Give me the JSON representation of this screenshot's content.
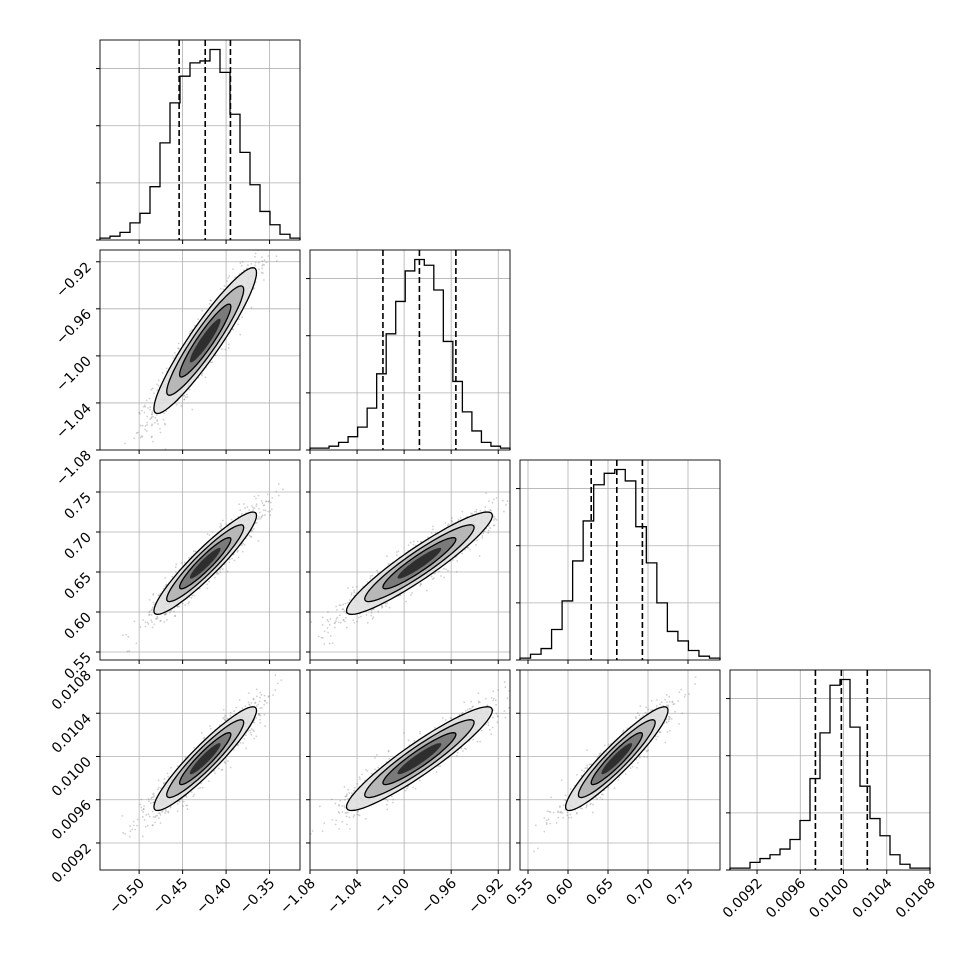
{
  "chart_data": {
    "type": "corner",
    "params": [
      {
        "ticks": [
          -0.5,
          -0.45,
          -0.4,
          -0.35
        ],
        "tick_labels": [
          "−0.50",
          "−0.45",
          "−0.40",
          "−0.35"
        ],
        "range": [
          -0.545,
          -0.315
        ],
        "hist_counts": [
          0.01,
          0.02,
          0.04,
          0.09,
          0.14,
          0.28,
          0.51,
          0.72,
          0.86,
          0.93,
          0.94,
          1.0,
          0.88,
          0.66,
          0.46,
          0.29,
          0.15,
          0.08,
          0.03,
          0.01
        ],
        "quantiles": [
          -0.454,
          -0.424,
          -0.395
        ]
      },
      {
        "ticks": [
          -1.08,
          -1.04,
          -1.0,
          -0.96,
          -0.92
        ],
        "tick_labels": [
          "−1.08",
          "−1.04",
          "−1.00",
          "−0.96",
          "−0.92"
        ],
        "range": [
          -1.08,
          -0.91
        ],
        "hist_counts": [
          0.01,
          0.01,
          0.02,
          0.04,
          0.07,
          0.12,
          0.22,
          0.4,
          0.61,
          0.78,
          0.94,
          1.0,
          0.97,
          0.84,
          0.57,
          0.36,
          0.2,
          0.1,
          0.04,
          0.02,
          0.01
        ],
        "quantiles": [
          -1.018,
          -0.987,
          -0.956
        ]
      },
      {
        "ticks": [
          0.55,
          0.6,
          0.65,
          0.7,
          0.75
        ],
        "tick_labels": [
          "0.55",
          "0.60",
          "0.65",
          "0.70",
          "0.75"
        ],
        "range": [
          0.54,
          0.79
        ],
        "hist_counts": [
          0.01,
          0.03,
          0.06,
          0.16,
          0.31,
          0.52,
          0.73,
          0.92,
          0.98,
          1.0,
          0.94,
          0.7,
          0.51,
          0.3,
          0.15,
          0.1,
          0.05,
          0.02,
          0.01
        ],
        "quantiles": [
          0.629,
          0.661,
          0.693
        ]
      },
      {
        "ticks": [
          0.0092,
          0.0096,
          0.01,
          0.0104,
          0.0108
        ],
        "tick_labels": [
          "0.0092",
          "0.0096",
          "0.0100",
          "0.0104",
          "0.0108"
        ],
        "range": [
          0.00895,
          0.0108
        ],
        "hist_counts": [
          0.01,
          0.01,
          0.04,
          0.06,
          0.08,
          0.11,
          0.16,
          0.26,
          0.48,
          0.72,
          0.97,
          1.0,
          0.75,
          0.44,
          0.27,
          0.18,
          0.08,
          0.03,
          0.01,
          0.01
        ],
        "quantiles": [
          0.00974,
          0.00998,
          0.01022
        ]
      }
    ],
    "correlation": 0.93,
    "grid": true,
    "xlabel": "",
    "ylabel": ""
  }
}
